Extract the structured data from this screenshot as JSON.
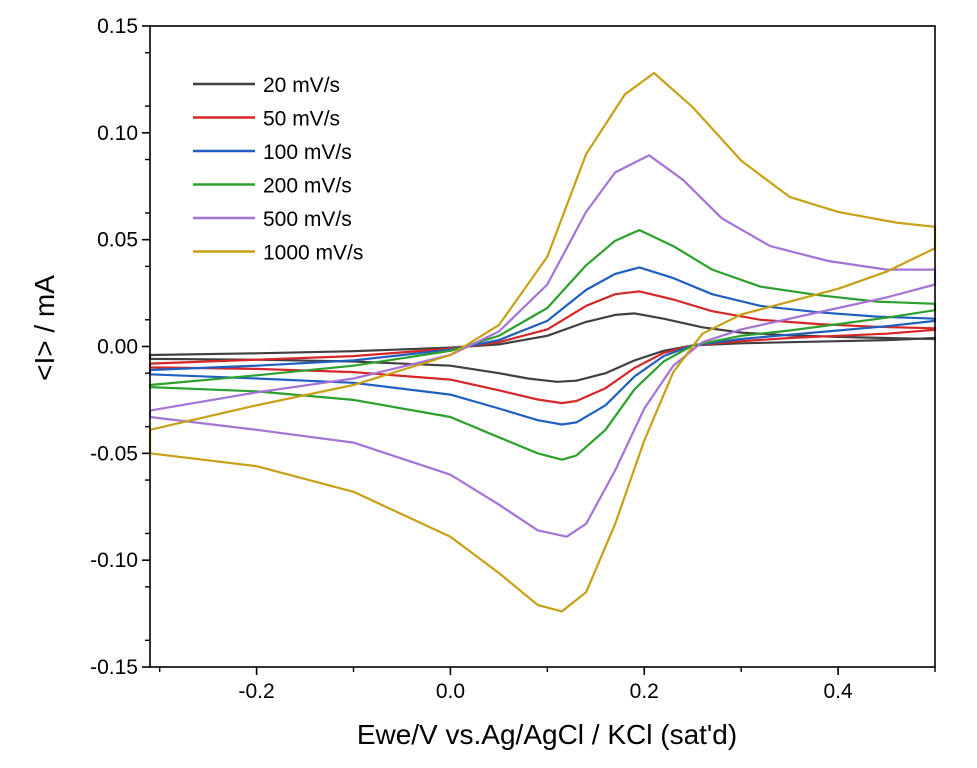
{
  "chart_data": {
    "type": "line",
    "title": "",
    "xlabel": "Ewe/V vs.Ag/AgCl / KCl (sat'd)",
    "ylabel": "<I> / mA",
    "xlim": [
      -0.31,
      0.5
    ],
    "ylim": [
      -0.15,
      0.15
    ],
    "grid": false,
    "legend_position": "top-left",
    "x_ticks": [
      {
        "value": -0.2,
        "label": "-0.2"
      },
      {
        "value": 0.0,
        "label": "0.0"
      },
      {
        "value": 0.2,
        "label": "0.2"
      },
      {
        "value": 0.4,
        "label": "0.4"
      }
    ],
    "y_ticks": [
      {
        "value": 0.15,
        "label": "0.15"
      },
      {
        "value": 0.1,
        "label": "0.10"
      },
      {
        "value": 0.05,
        "label": "0.05"
      },
      {
        "value": 0.0,
        "label": "0.00"
      },
      {
        "value": -0.05,
        "label": "-0.05"
      },
      {
        "value": -0.1,
        "label": "-0.10"
      },
      {
        "value": -0.15,
        "label": "-0.15"
      }
    ],
    "series": [
      {
        "name": "20 mV/s",
        "color": "#404040",
        "points": [
          [
            -0.31,
            -0.004
          ],
          [
            -0.2,
            -0.0032
          ],
          [
            -0.1,
            -0.0022
          ],
          [
            0.0,
            -0.0005
          ],
          [
            0.05,
            0.001
          ],
          [
            0.1,
            0.005
          ],
          [
            0.14,
            0.0115
          ],
          [
            0.17,
            0.0148
          ],
          [
            0.19,
            0.0155
          ],
          [
            0.22,
            0.013
          ],
          [
            0.26,
            0.009
          ],
          [
            0.3,
            0.0065
          ],
          [
            0.35,
            0.0052
          ],
          [
            0.4,
            0.0045
          ],
          [
            0.45,
            0.004
          ],
          [
            0.5,
            0.0035
          ],
          [
            0.5,
            0.004
          ],
          [
            0.45,
            0.003
          ],
          [
            0.4,
            0.0025
          ],
          [
            0.35,
            0.002
          ],
          [
            0.3,
            0.0015
          ],
          [
            0.25,
            0.0005
          ],
          [
            0.22,
            -0.002
          ],
          [
            0.19,
            -0.0065
          ],
          [
            0.16,
            -0.0125
          ],
          [
            0.13,
            -0.016
          ],
          [
            0.11,
            -0.0165
          ],
          [
            0.08,
            -0.015
          ],
          [
            0.05,
            -0.0125
          ],
          [
            0.0,
            -0.009
          ],
          [
            -0.1,
            -0.007
          ],
          [
            -0.2,
            -0.0062
          ],
          [
            -0.31,
            -0.0058
          ]
        ]
      },
      {
        "name": "50 mV/s",
        "color": "#d62728",
        "points": [
          [
            -0.31,
            -0.008
          ],
          [
            -0.2,
            -0.0062
          ],
          [
            -0.1,
            -0.0045
          ],
          [
            0.0,
            -0.001
          ],
          [
            0.05,
            0.002
          ],
          [
            0.1,
            0.008
          ],
          [
            0.14,
            0.019
          ],
          [
            0.17,
            0.0245
          ],
          [
            0.195,
            0.0258
          ],
          [
            0.23,
            0.022
          ],
          [
            0.27,
            0.0165
          ],
          [
            0.32,
            0.0125
          ],
          [
            0.38,
            0.0105
          ],
          [
            0.44,
            0.0092
          ],
          [
            0.5,
            0.0085
          ],
          [
            0.5,
            0.0078
          ],
          [
            0.45,
            0.006
          ],
          [
            0.4,
            0.005
          ],
          [
            0.35,
            0.004
          ],
          [
            0.3,
            0.0025
          ],
          [
            0.25,
            0.0005
          ],
          [
            0.22,
            -0.003
          ],
          [
            0.19,
            -0.01
          ],
          [
            0.16,
            -0.0195
          ],
          [
            0.13,
            -0.0255
          ],
          [
            0.115,
            -0.0265
          ],
          [
            0.09,
            -0.0248
          ],
          [
            0.05,
            -0.0205
          ],
          [
            0.0,
            -0.0155
          ],
          [
            -0.1,
            -0.012
          ],
          [
            -0.2,
            -0.0105
          ],
          [
            -0.31,
            -0.0098
          ]
        ]
      },
      {
        "name": "100 mV/s",
        "color": "#1f5fbf",
        "points": [
          [
            -0.31,
            -0.011
          ],
          [
            -0.2,
            -0.009
          ],
          [
            -0.1,
            -0.0065
          ],
          [
            0.0,
            -0.0015
          ],
          [
            0.05,
            0.003
          ],
          [
            0.1,
            0.012
          ],
          [
            0.14,
            0.0265
          ],
          [
            0.17,
            0.034
          ],
          [
            0.195,
            0.037
          ],
          [
            0.23,
            0.032
          ],
          [
            0.27,
            0.0245
          ],
          [
            0.32,
            0.019
          ],
          [
            0.38,
            0.016
          ],
          [
            0.44,
            0.014
          ],
          [
            0.5,
            0.013
          ],
          [
            0.5,
            0.012
          ],
          [
            0.45,
            0.0095
          ],
          [
            0.4,
            0.0075
          ],
          [
            0.35,
            0.0055
          ],
          [
            0.3,
            0.0035
          ],
          [
            0.25,
            0.0005
          ],
          [
            0.22,
            -0.0045
          ],
          [
            0.19,
            -0.014
          ],
          [
            0.16,
            -0.0275
          ],
          [
            0.13,
            -0.0355
          ],
          [
            0.115,
            -0.0365
          ],
          [
            0.09,
            -0.0345
          ],
          [
            0.05,
            -0.029
          ],
          [
            0.0,
            -0.0225
          ],
          [
            -0.1,
            -0.017
          ],
          [
            -0.2,
            -0.015
          ],
          [
            -0.31,
            -0.013
          ]
        ]
      },
      {
        "name": "200 mV/s",
        "color": "#2ca02c",
        "points": [
          [
            -0.31,
            -0.018
          ],
          [
            -0.2,
            -0.0135
          ],
          [
            -0.1,
            -0.009
          ],
          [
            0.0,
            -0.002
          ],
          [
            0.05,
            0.005
          ],
          [
            0.1,
            0.018
          ],
          [
            0.14,
            0.038
          ],
          [
            0.17,
            0.0495
          ],
          [
            0.195,
            0.0545
          ],
          [
            0.23,
            0.047
          ],
          [
            0.27,
            0.036
          ],
          [
            0.32,
            0.028
          ],
          [
            0.38,
            0.024
          ],
          [
            0.44,
            0.021
          ],
          [
            0.5,
            0.02
          ],
          [
            0.5,
            0.017
          ],
          [
            0.45,
            0.0135
          ],
          [
            0.4,
            0.0105
          ],
          [
            0.35,
            0.0075
          ],
          [
            0.3,
            0.005
          ],
          [
            0.25,
            0.0005
          ],
          [
            0.22,
            -0.007
          ],
          [
            0.19,
            -0.02
          ],
          [
            0.16,
            -0.039
          ],
          [
            0.13,
            -0.051
          ],
          [
            0.115,
            -0.053
          ],
          [
            0.09,
            -0.05
          ],
          [
            0.05,
            -0.0425
          ],
          [
            0.0,
            -0.033
          ],
          [
            -0.1,
            -0.025
          ],
          [
            -0.2,
            -0.021
          ],
          [
            -0.31,
            -0.019
          ]
        ]
      },
      {
        "name": "500 mV/s",
        "color": "#a374d6",
        "points": [
          [
            -0.31,
            -0.03
          ],
          [
            -0.2,
            -0.0215
          ],
          [
            -0.1,
            -0.015
          ],
          [
            0.0,
            -0.004
          ],
          [
            0.05,
            0.007
          ],
          [
            0.1,
            0.029
          ],
          [
            0.14,
            0.063
          ],
          [
            0.17,
            0.0815
          ],
          [
            0.205,
            0.0895
          ],
          [
            0.24,
            0.078
          ],
          [
            0.28,
            0.06
          ],
          [
            0.33,
            0.047
          ],
          [
            0.39,
            0.04
          ],
          [
            0.45,
            0.036
          ],
          [
            0.5,
            0.036
          ],
          [
            0.5,
            0.029
          ],
          [
            0.45,
            0.023
          ],
          [
            0.4,
            0.018
          ],
          [
            0.35,
            0.013
          ],
          [
            0.3,
            0.008
          ],
          [
            0.26,
            0.002
          ],
          [
            0.23,
            -0.009
          ],
          [
            0.2,
            -0.029
          ],
          [
            0.17,
            -0.058
          ],
          [
            0.14,
            -0.083
          ],
          [
            0.12,
            -0.089
          ],
          [
            0.09,
            -0.086
          ],
          [
            0.05,
            -0.074
          ],
          [
            0.0,
            -0.06
          ],
          [
            -0.1,
            -0.045
          ],
          [
            -0.2,
            -0.039
          ],
          [
            -0.31,
            -0.033
          ]
        ]
      },
      {
        "name": "1000 mV/s",
        "color": "#c8a015",
        "points": [
          [
            -0.31,
            -0.039
          ],
          [
            -0.2,
            -0.0275
          ],
          [
            -0.1,
            -0.018
          ],
          [
            0.0,
            -0.004
          ],
          [
            0.05,
            0.01
          ],
          [
            0.1,
            0.042
          ],
          [
            0.14,
            0.09
          ],
          [
            0.18,
            0.118
          ],
          [
            0.21,
            0.128
          ],
          [
            0.25,
            0.112
          ],
          [
            0.3,
            0.087
          ],
          [
            0.35,
            0.07
          ],
          [
            0.4,
            0.063
          ],
          [
            0.46,
            0.058
          ],
          [
            0.5,
            0.056
          ],
          [
            0.5,
            0.046
          ],
          [
            0.45,
            0.035
          ],
          [
            0.4,
            0.027
          ],
          [
            0.35,
            0.021
          ],
          [
            0.3,
            0.015
          ],
          [
            0.26,
            0.006
          ],
          [
            0.23,
            -0.012
          ],
          [
            0.2,
            -0.044
          ],
          [
            0.17,
            -0.083
          ],
          [
            0.14,
            -0.115
          ],
          [
            0.115,
            -0.124
          ],
          [
            0.09,
            -0.121
          ],
          [
            0.05,
            -0.106
          ],
          [
            0.0,
            -0.089
          ],
          [
            -0.1,
            -0.068
          ],
          [
            -0.2,
            -0.056
          ],
          [
            -0.31,
            -0.05
          ]
        ]
      }
    ]
  }
}
